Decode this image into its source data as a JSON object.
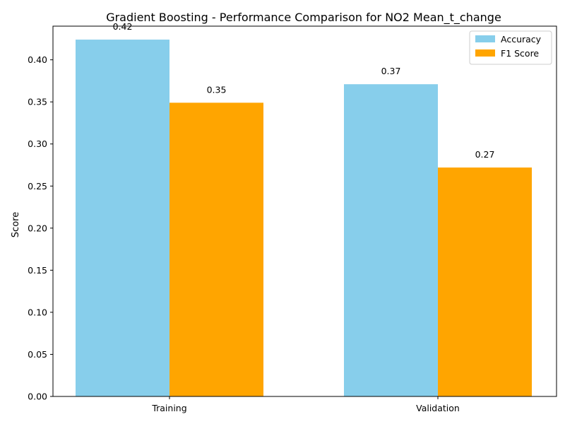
{
  "chart_data": {
    "type": "bar",
    "title": "Gradient Boosting - Performance Comparison for NO2 Mean_t_change",
    "xlabel": "",
    "ylabel": "Score",
    "categories": [
      "Training",
      "Validation"
    ],
    "series": [
      {
        "name": "Accuracy",
        "color": "#87CEEB",
        "values": [
          0.424,
          0.371
        ],
        "labels": [
          "0.42",
          "0.37"
        ]
      },
      {
        "name": "F1 Score",
        "color": "#FFA500",
        "values": [
          0.349,
          0.272
        ],
        "labels": [
          "0.35",
          "0.27"
        ]
      }
    ],
    "ylim": [
      0,
      0.44
    ],
    "yticks": [
      "0.00",
      "0.05",
      "0.10",
      "0.15",
      "0.20",
      "0.25",
      "0.30",
      "0.35",
      "0.40"
    ],
    "legend": "top-right",
    "grid": false
  }
}
